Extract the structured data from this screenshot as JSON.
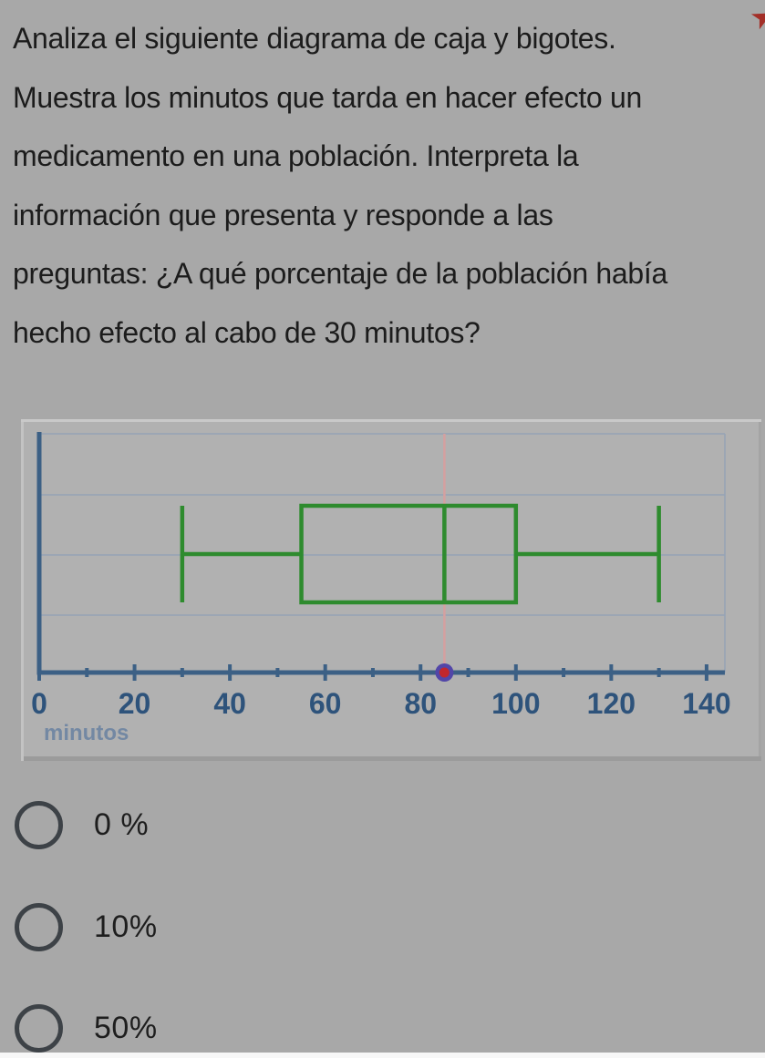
{
  "question": {
    "lines": [
      "Analiza el siguiente diagrama de caja y bigotes.",
      "Muestra los minutos que tarda en hacer efecto un",
      "medicamento en una población. Interpreta la",
      "información que presenta y responde a las",
      "preguntas: ¿A qué porcentaje de la población había",
      "hecho efecto al cabo de 30 minutos?"
    ]
  },
  "decor": {
    "corner_mark_glyph": "➤",
    "corner_mark_color": "#a32f28"
  },
  "chart_data": {
    "type": "boxplot",
    "title": "",
    "xlabel": "minutos",
    "xlim": [
      0,
      143
    ],
    "x_major_ticks": [
      0,
      20,
      40,
      60,
      80,
      100,
      120,
      140
    ],
    "x_minor_ticks": [
      10,
      30,
      50,
      70,
      90,
      110,
      130
    ],
    "box": {
      "min": 30,
      "q1": 55,
      "median": 85,
      "q3": 100,
      "max": 130
    },
    "marker_x": 85,
    "reference_line_x": 85,
    "grid": true,
    "legend": "none",
    "colors": {
      "box_stroke": "#2e8b2e",
      "axis": "#3c6085",
      "grid_line": "#95a3b6",
      "reference_line": "#d4a0a0",
      "marker_ring": "#5246a8",
      "marker_fill": "#c1272d",
      "tick_label": "#2e537b",
      "axis_label": "#7388a3"
    }
  },
  "options": [
    {
      "label": "0 %"
    },
    {
      "label": "10%"
    },
    {
      "label": "50%"
    }
  ]
}
